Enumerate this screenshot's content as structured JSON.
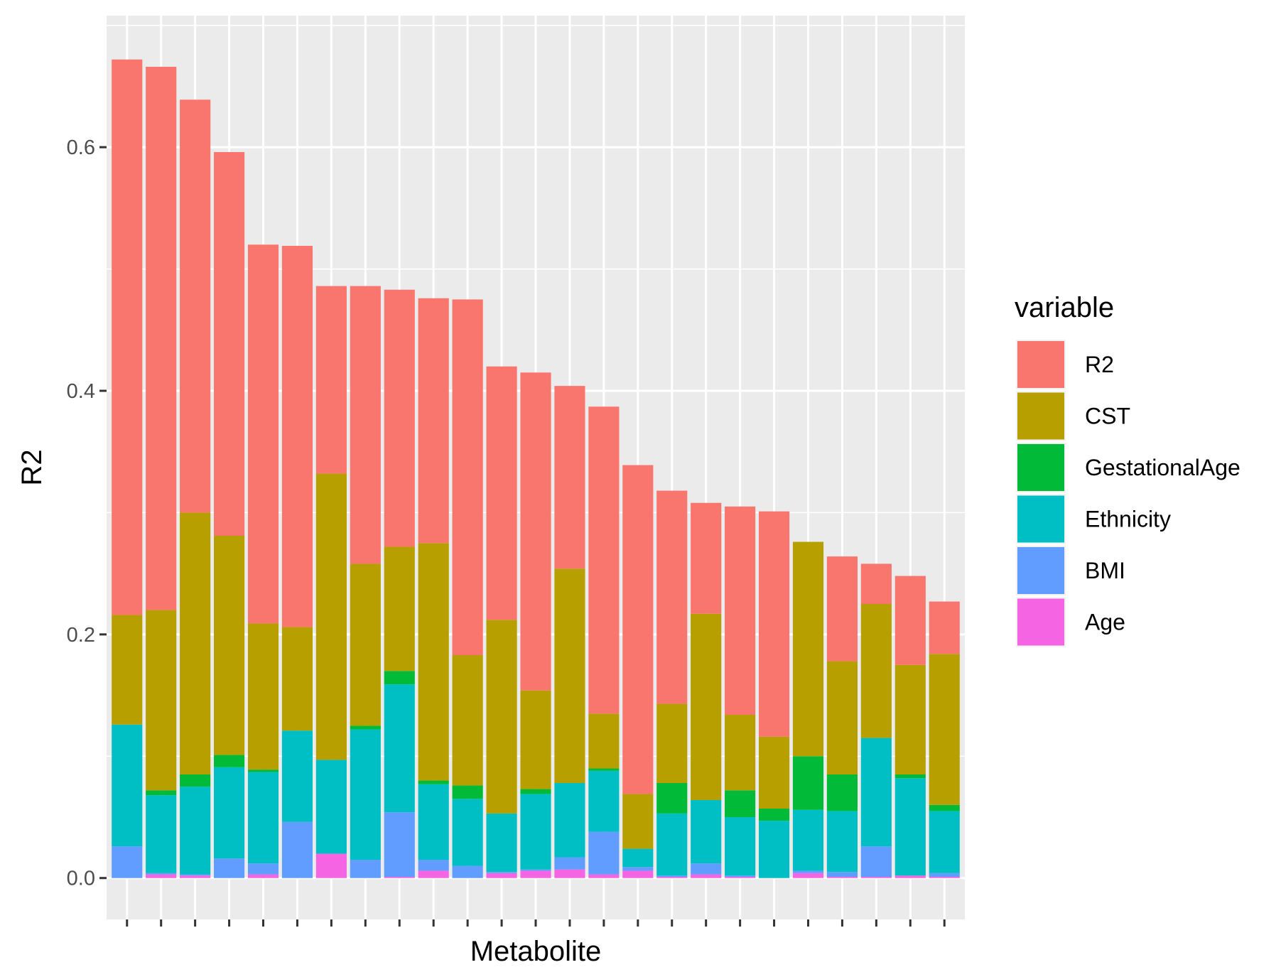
{
  "chart_data": {
    "type": "bar",
    "stacked": true,
    "xlabel": "Metabolite",
    "ylabel": "R2",
    "ylim": [
      -0.034,
      0.708
    ],
    "yticks": [
      "0.0",
      "0.2",
      "0.4",
      "0.6"
    ],
    "ytick_values": [
      0.0,
      0.2,
      0.4,
      0.6
    ],
    "grid": true,
    "x_tick_labels_shown": false,
    "legend": {
      "title": "variable",
      "position": "right",
      "items": [
        "R2",
        "CST",
        "GestationalAge",
        "Ethnicity",
        "BMI",
        "Age"
      ]
    },
    "stack_order_bottom_to_top": [
      "Age",
      "BMI",
      "Ethnicity",
      "GestationalAge",
      "CST",
      "R2"
    ],
    "colors": {
      "R2": "#F8766D",
      "CST": "#B79F00",
      "GestationalAge": "#00BA38",
      "Ethnicity": "#00BFC4",
      "BMI": "#619CFF",
      "Age": "#F564E3"
    },
    "panel_background": "#EBEBEB",
    "grid_color": "#FFFFFF",
    "series": [
      {
        "name": "Age",
        "values": [
          0.0,
          0.003,
          0.002,
          0.0,
          0.003,
          0.0,
          0.02,
          0.0,
          0.001,
          0.006,
          0.0,
          0.004,
          0.006,
          0.007,
          0.003,
          0.006,
          0.001,
          0.003,
          0.001,
          0.0,
          0.004,
          0.001,
          0.001,
          0.002,
          0.001
        ]
      },
      {
        "name": "BMI",
        "values": [
          0.026,
          0.001,
          0.001,
          0.016,
          0.009,
          0.046,
          0.0,
          0.015,
          0.053,
          0.009,
          0.01,
          0.001,
          0.001,
          0.01,
          0.035,
          0.003,
          0.001,
          0.009,
          0.001,
          0.0,
          0.002,
          0.004,
          0.025,
          0.0,
          0.003
        ]
      },
      {
        "name": "Ethnicity",
        "values": [
          0.1,
          0.064,
          0.072,
          0.075,
          0.075,
          0.075,
          0.077,
          0.107,
          0.105,
          0.062,
          0.055,
          0.048,
          0.062,
          0.061,
          0.05,
          0.015,
          0.051,
          0.052,
          0.048,
          0.047,
          0.05,
          0.05,
          0.089,
          0.08,
          0.051
        ]
      },
      {
        "name": "GestationalAge",
        "values": [
          0.0,
          0.004,
          0.01,
          0.01,
          0.002,
          0.0,
          0.0,
          0.003,
          0.011,
          0.003,
          0.011,
          0.0,
          0.004,
          0.0,
          0.002,
          0.0,
          0.025,
          0.0,
          0.022,
          0.01,
          0.044,
          0.03,
          0.0,
          0.003,
          0.005
        ]
      },
      {
        "name": "CST",
        "values": [
          0.09,
          0.148,
          0.215,
          0.18,
          0.12,
          0.085,
          0.235,
          0.133,
          0.102,
          0.195,
          0.107,
          0.159,
          0.081,
          0.176,
          0.045,
          0.045,
          0.065,
          0.153,
          0.062,
          0.059,
          0.176,
          0.093,
          0.11,
          0.09,
          0.124
        ]
      },
      {
        "name": "R2",
        "values": [
          0.456,
          0.446,
          0.339,
          0.315,
          0.311,
          0.313,
          0.154,
          0.228,
          0.211,
          0.201,
          0.292,
          0.208,
          0.261,
          0.15,
          0.252,
          0.27,
          0.175,
          0.091,
          0.171,
          0.185,
          0.0,
          0.086,
          0.033,
          0.073,
          0.043
        ]
      }
    ],
    "categories": [
      "1",
      "2",
      "3",
      "4",
      "5",
      "6",
      "7",
      "8",
      "9",
      "10",
      "11",
      "12",
      "13",
      "14",
      "15",
      "16",
      "17",
      "18",
      "19",
      "20",
      "21",
      "22",
      "23",
      "24",
      "25"
    ]
  }
}
